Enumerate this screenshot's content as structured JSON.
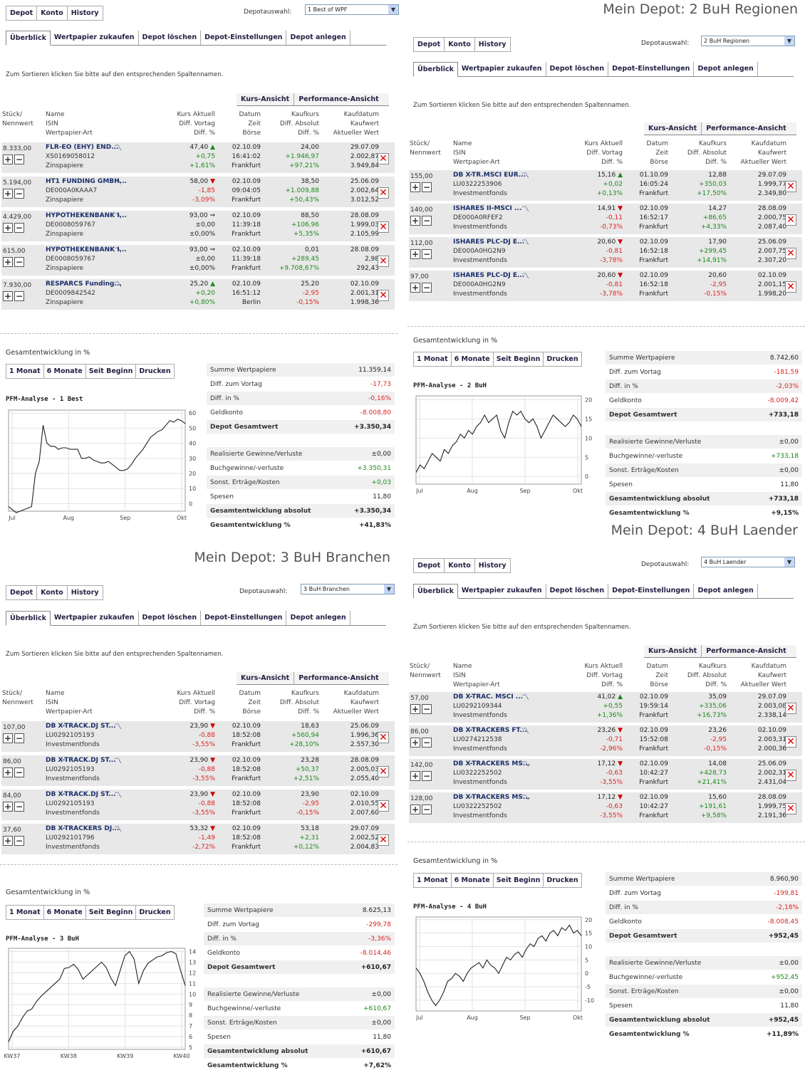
{
  "common": {
    "nav_tabs": [
      "Depot",
      "Konto",
      "History"
    ],
    "depot_select_label": "Depotauswahl:",
    "sub_tabs": [
      "Überblick",
      "Wertpapier zukaufen",
      "Depot löschen",
      "Depot-Einstellungen",
      "Depot anlegen"
    ],
    "sort_hint": "Zum Sortieren klicken Sie bitte auf den entsprechenden Spaltennamen.",
    "view_tabs": [
      "Kurs-Ansicht",
      "Performance-Ansicht"
    ],
    "headers": {
      "col1": [
        "Stück/",
        "Nennwert"
      ],
      "col2": [
        "Name",
        "ISIN",
        "Wertpapier-Art"
      ],
      "col3": [
        "Kurs Aktuell",
        "Diff. Vortag",
        "Diff. %"
      ],
      "col4": [
        "Datum",
        "Zeit",
        "Börse"
      ],
      "col5": [
        "Kaufkurs",
        "Diff. Absolut",
        "Diff. %"
      ],
      "col6": [
        "Kaufdatum",
        "Kaufwert",
        "Aktueller Wert"
      ]
    },
    "gesamt_label": "Gesamtentwicklung in %",
    "range_tabs": [
      "1 Monat",
      "6 Monate",
      "Seit Beginn",
      "Drucken"
    ],
    "summary_labels": {
      "summe": "Summe Wertpapiere",
      "diff_vortag": "Diff. zum Vortag",
      "diff_pct": "Diff. in %",
      "geldkonto": "Geldkonto",
      "depot_gesamt": "Depot Gesamtwert",
      "realisiert": "Realisierte Gewinne/Verluste",
      "buch": "Buchgewinne/-verluste",
      "sonst": "Sonst. Erträge/Kosten",
      "spesen": "Spesen",
      "ges_abs": "Gesamtentwicklung absolut",
      "ges_pct": "Gesamtentwicklung %"
    },
    "colors": {
      "positive": "#1a8a1a",
      "negative": "#e02020",
      "link": "#1a2f6b"
    }
  },
  "panels": [
    {
      "title": "",
      "depot_selected": "1 Best of WPF",
      "rows": [
        {
          "qty": "8.333,00",
          "name": "FLR-EO (EHY) END...",
          "isin": "XS0169058012",
          "type": "Zinspapiere",
          "kurs": "47,40",
          "arrow": "up",
          "diff_vortag": "+0,75",
          "diff_pct": "+1,61%",
          "datum": "02.10.09",
          "zeit": "16:41:02",
          "boerse": "Frankfurt",
          "kaufkurs": "24,00",
          "diff_abs": "+1.946,97",
          "diff_pct2": "+97,21%",
          "kaufdatum": "29.07.09",
          "kaufwert": "2.002,87",
          "akt_wert": "3.949,84"
        },
        {
          "qty": "5.194,00",
          "name": "HT1 FUNDING GMBH...",
          "isin": "DE000A0KAAA7",
          "type": "Zinspapiere",
          "kurs": "58,00",
          "arrow": "dn",
          "diff_vortag": "-1,85",
          "diff_pct": "-3,09%",
          "datum": "02.10.09",
          "zeit": "09:04:05",
          "boerse": "Frankfurt",
          "kaufkurs": "38,50",
          "diff_abs": "+1.009,88",
          "diff_pct2": "+50,43%",
          "kaufdatum": "25.06.09",
          "kaufwert": "2.002,64",
          "akt_wert": "3.012,52"
        },
        {
          "qty": "4.429,00",
          "name": "HYPOTHEKENBANK I...",
          "isin": "DE0008059767",
          "type": "Zinspapiere",
          "kurs": "93,00",
          "arrow": "eq",
          "diff_vortag": "±0,00",
          "diff_pct": "±0,00%",
          "datum": "02.10.09",
          "zeit": "11:39:18",
          "boerse": "Frankfurt",
          "kaufkurs": "88,50",
          "diff_abs": "+106,96",
          "diff_pct2": "+5,35%",
          "kaufdatum": "28.08.09",
          "kaufwert": "1.999,03",
          "akt_wert": "2.105,99"
        },
        {
          "qty": "615,00",
          "name": "HYPOTHEKENBANK I...",
          "isin": "DE0008059767",
          "type": "Zinspapiere",
          "kurs": "93,00",
          "arrow": "eq",
          "diff_vortag": "±0,00",
          "diff_pct": "±0,00%",
          "datum": "02.10.09",
          "zeit": "11:39:18",
          "boerse": "Frankfurt",
          "kaufkurs": "0,01",
          "diff_abs": "+289,45",
          "diff_pct2": "+9.708,67%",
          "kaufdatum": "28.08.09",
          "kaufwert": "2,98",
          "akt_wert": "292,43"
        },
        {
          "qty": "7.930,00",
          "name": "RESPARCS Funding...",
          "isin": "DE0009842542",
          "type": "Zinspapiere",
          "kurs": "25,20",
          "arrow": "up",
          "diff_vortag": "+0,20",
          "diff_pct": "+0,80%",
          "datum": "02.10.09",
          "zeit": "16:51:12",
          "boerse": "Berlin",
          "kaufkurs": "25,20",
          "diff_abs": "-2,95",
          "diff_pct2": "-0,15%",
          "kaufdatum": "02.10.09",
          "kaufwert": "2.001,31",
          "akt_wert": "1.998,36"
        }
      ],
      "pfm": "PFM-Analyse - 1 Best",
      "chart": {
        "ylabels": [
          "60",
          "50",
          "40",
          "30",
          "20",
          "10",
          "0"
        ],
        "xlabels": [
          "Jul",
          "Aug",
          "Sep",
          "Okt"
        ],
        "ymin": -5,
        "ymax": 62,
        "values": [
          -2,
          -4,
          -6,
          -5,
          -4,
          -3,
          -2,
          20,
          28,
          52,
          40,
          38,
          38,
          36,
          37,
          37,
          36,
          36,
          36,
          30,
          30,
          31,
          29,
          28,
          27,
          27,
          28,
          26,
          24,
          22,
          22,
          23,
          26,
          30,
          33,
          36,
          40,
          44,
          46,
          48,
          49,
          52,
          55,
          54,
          56,
          55,
          53
        ]
      },
      "summary": {
        "summe": "11.359,14",
        "diff_vortag": "-17,73",
        "diff_pct": "-0,16%",
        "geldkonto": "-8.008,80",
        "depot_gesamt": "+3.350,34",
        "realisiert": "±0,00",
        "buch": "+3.350,31",
        "sonst": "+0,03",
        "spesen": "11,80",
        "ges_abs": "+3.350,34",
        "ges_pct": "+41,83%"
      }
    },
    {
      "title": "Mein Depot: 2 BuH Regionen",
      "depot_selected": "2 BuH Regionen",
      "rows": [
        {
          "qty": "155,00",
          "name": "DB X-TR.MSCI EUR...",
          "isin": "LU0322253906",
          "type": "Investmentfonds",
          "kurs": "15,16",
          "arrow": "up",
          "diff_vortag": "+0,02",
          "diff_pct": "+0,13%",
          "datum": "01.10.09",
          "zeit": "16:05:24",
          "boerse": "Frankfurt",
          "kaufkurs": "12,88",
          "diff_abs": "+350,03",
          "diff_pct2": "+17,50%",
          "kaufdatum": "29.07.09",
          "kaufwert": "1.999,77",
          "akt_wert": "2.349,80"
        },
        {
          "qty": "140,00",
          "name": "ISHARES II-MSCI ...",
          "isin": "DE000A0RFEF2",
          "type": "Investmentfonds",
          "kurs": "14,91",
          "arrow": "dn",
          "diff_vortag": "-0,11",
          "diff_pct": "-0,73%",
          "datum": "02.10.09",
          "zeit": "16:52:17",
          "boerse": "Frankfurt",
          "kaufkurs": "14,27",
          "diff_abs": "+86,65",
          "diff_pct2": "+4,33%",
          "kaufdatum": "28.08.09",
          "kaufwert": "2.000,75",
          "akt_wert": "2.087,40"
        },
        {
          "qty": "112,00",
          "name": "ISHARES PLC-DJ E...",
          "isin": "DE000A0HG2N9",
          "type": "Investmentfonds",
          "kurs": "20,60",
          "arrow": "dn",
          "diff_vortag": "-0,81",
          "diff_pct": "-3,78%",
          "datum": "02.10.09",
          "zeit": "16:52:18",
          "boerse": "Frankfurt",
          "kaufkurs": "17,90",
          "diff_abs": "+299,45",
          "diff_pct2": "+14,91%",
          "kaufdatum": "25.06.09",
          "kaufwert": "2.007,75",
          "akt_wert": "2.307,20"
        },
        {
          "qty": "97,00",
          "name": "ISHARES PLC-DJ E...",
          "isin": "DE000A0HG2N9",
          "type": "Investmentfonds",
          "kurs": "20,60",
          "arrow": "dn",
          "diff_vortag": "-0,81",
          "diff_pct": "-3,78%",
          "datum": "02.10.09",
          "zeit": "16:52:18",
          "boerse": "Frankfurt",
          "kaufkurs": "20,60",
          "diff_abs": "-2,95",
          "diff_pct2": "-0,15%",
          "kaufdatum": "02.10.09",
          "kaufwert": "2.001,15",
          "akt_wert": "1.998,20"
        }
      ],
      "pfm": "PFM-Analyse - 2 BuH",
      "chart": {
        "ylabels": [
          "20",
          "15",
          "10",
          "5",
          "0"
        ],
        "xlabels": [
          "Jul",
          "Aug",
          "Sep",
          "Okt"
        ],
        "ymin": -2,
        "ymax": 21,
        "values": [
          1,
          3,
          2,
          4,
          6,
          5,
          4,
          7,
          6,
          8,
          9,
          11,
          10,
          12,
          11,
          13,
          14,
          16,
          14,
          15,
          16,
          12,
          10,
          14,
          17,
          16,
          17,
          15,
          14,
          15,
          13,
          10,
          12,
          14,
          16,
          15,
          14,
          13,
          14,
          16,
          15,
          13
        ]
      },
      "summary": {
        "summe": "8.742,60",
        "diff_vortag": "-181,59",
        "diff_pct": "-2,03%",
        "geldkonto": "-8.009,42",
        "depot_gesamt": "+733,18",
        "realisiert": "±0,00",
        "buch": "+733,18",
        "sonst": "±0,00",
        "spesen": "11,80",
        "ges_abs": "+733,18",
        "ges_pct": "+9,15%"
      }
    },
    {
      "title": "Mein Depot: 3 BuH Branchen",
      "depot_selected": "3 BuH Branchen",
      "rows": [
        {
          "qty": "107,00",
          "name": "DB X-TRACK.DJ ST...",
          "isin": "LU0292105193",
          "type": "Investmentfonds",
          "kurs": "23,90",
          "arrow": "dn",
          "diff_vortag": "-0,88",
          "diff_pct": "-3,55%",
          "datum": "02.10.09",
          "zeit": "18:52:08",
          "boerse": "Frankfurt",
          "kaufkurs": "18,63",
          "diff_abs": "+560,94",
          "diff_pct2": "+28,10%",
          "kaufdatum": "25.06.09",
          "kaufwert": "1.996,36",
          "akt_wert": "2.557,30"
        },
        {
          "qty": "86,00",
          "name": "DB X-TRACK.DJ ST...",
          "isin": "LU0292105193",
          "type": "Investmentfonds",
          "kurs": "23,90",
          "arrow": "dn",
          "diff_vortag": "-0,88",
          "diff_pct": "-3,55%",
          "datum": "02.10.09",
          "zeit": "18:52:08",
          "boerse": "Frankfurt",
          "kaufkurs": "23,28",
          "diff_abs": "+50,37",
          "diff_pct2": "+2,51%",
          "kaufdatum": "28.08.09",
          "kaufwert": "2.005,03",
          "akt_wert": "2.055,40"
        },
        {
          "qty": "84,00",
          "name": "DB X-TRACK.DJ ST...",
          "isin": "LU0292105193",
          "type": "Investmentfonds",
          "kurs": "23,90",
          "arrow": "dn",
          "diff_vortag": "-0,88",
          "diff_pct": "-3,55%",
          "datum": "02.10.09",
          "zeit": "18:52:08",
          "boerse": "Frankfurt",
          "kaufkurs": "23,90",
          "diff_abs": "-2,95",
          "diff_pct2": "-0,15%",
          "kaufdatum": "02.10.09",
          "kaufwert": "2.010,55",
          "akt_wert": "2.007,60"
        },
        {
          "qty": "37,60",
          "name": "DB X-TRACKERS DJ...",
          "isin": "LU0292101796",
          "type": "Investmentfonds",
          "kurs": "53,32",
          "arrow": "dn",
          "diff_vortag": "-1,49",
          "diff_pct": "-2,72%",
          "datum": "02.10.09",
          "zeit": "18:52:08",
          "boerse": "Frankfurt",
          "kaufkurs": "53,18",
          "diff_abs": "+2,31",
          "diff_pct2": "+0,12%",
          "kaufdatum": "29.07.09",
          "kaufwert": "2.002,52",
          "akt_wert": "2.004,83"
        }
      ],
      "pfm": "PFM-Analyse - 3 BuH",
      "chart": {
        "ylabels": [
          "14",
          "13",
          "12",
          "11",
          "10",
          "9",
          "8",
          "7",
          "6",
          "5"
        ],
        "xlabels": [
          "KW37",
          "KW38",
          "KW39",
          "KW40"
        ],
        "ymin": 4.8,
        "ymax": 14.3,
        "values": [
          5.5,
          6.5,
          7,
          7.8,
          8.4,
          8.6,
          9.3,
          9.8,
          10.2,
          10.6,
          11,
          11.4,
          12.4,
          12.5,
          12.8,
          12.3,
          11.4,
          11.8,
          12.2,
          12.6,
          13,
          12.5,
          11.5,
          10.8,
          12.2,
          13.6,
          14,
          13.3,
          11,
          12.2,
          12.9,
          13.2,
          13.5,
          13.6,
          13.9,
          14,
          13.8,
          12.2,
          10.8
        ]
      },
      "summary": {
        "summe": "8.625,13",
        "diff_vortag": "-299,78",
        "diff_pct": "-3,36%",
        "geldkonto": "-8.014,46",
        "depot_gesamt": "+610,67",
        "realisiert": "±0,00",
        "buch": "+610,67",
        "sonst": "±0,00",
        "spesen": "11,80",
        "ges_abs": "+610,67",
        "ges_pct": "+7,62%"
      }
    },
    {
      "title": "Mein Depot: 4 BuH Laender",
      "depot_selected": "4 BuH Laender",
      "rows": [
        {
          "qty": "57,00",
          "name": "DB X-TRAC. MSCI ...",
          "isin": "LU0292109344",
          "type": "Investmentfonds",
          "kurs": "41,02",
          "arrow": "up",
          "diff_vortag": "+0,55",
          "diff_pct": "+1,36%",
          "datum": "02.10.09",
          "zeit": "19:59:14",
          "boerse": "Frankfurt",
          "kaufkurs": "35,09",
          "diff_abs": "+335,06",
          "diff_pct2": "+16,73%",
          "kaufdatum": "29.07.09",
          "kaufwert": "2.003,08",
          "akt_wert": "2.338,14"
        },
        {
          "qty": "86,00",
          "name": "DB X-TRACKERS FT...",
          "isin": "LU0274212538",
          "type": "Investmentfonds",
          "kurs": "23,26",
          "arrow": "dn",
          "diff_vortag": "-0,71",
          "diff_pct": "-2,96%",
          "datum": "02.10.09",
          "zeit": "15:52:08",
          "boerse": "Frankfurt",
          "kaufkurs": "23,26",
          "diff_abs": "-2,95",
          "diff_pct2": "-0,15%",
          "kaufdatum": "02.10.09",
          "kaufwert": "2.003,31",
          "akt_wert": "2.000,36"
        },
        {
          "qty": "142,00",
          "name": "DB X-TRACKERS MS...",
          "isin": "LU0322252502",
          "type": "Investmentfonds",
          "kurs": "17,12",
          "arrow": "dn",
          "diff_vortag": "-0,63",
          "diff_pct": "-3,55%",
          "datum": "02.10.09",
          "zeit": "10:42:27",
          "boerse": "Frankfurt",
          "kaufkurs": "14,08",
          "diff_abs": "+428,73",
          "diff_pct2": "+21,41%",
          "kaufdatum": "25.06.09",
          "kaufwert": "2.002,31",
          "akt_wert": "2.431,04"
        },
        {
          "qty": "128,00",
          "name": "DB X-TRACKERS MS...",
          "isin": "LU0322252502",
          "type": "Investmentfonds",
          "kurs": "17,12",
          "arrow": "dn",
          "diff_vortag": "-0,63",
          "diff_pct": "-3,55%",
          "datum": "02.10.09",
          "zeit": "10:42:27",
          "boerse": "Frankfurt",
          "kaufkurs": "15,60",
          "diff_abs": "+191,61",
          "diff_pct2": "+9,58%",
          "kaufdatum": "28.08.09",
          "kaufwert": "1.999,75",
          "akt_wert": "2.191,36"
        }
      ],
      "pfm": "PFM-Analyse - 4 BuH",
      "chart": {
        "ylabels": [
          "20",
          "15",
          "10",
          "5",
          "0",
          "-5",
          "-10"
        ],
        "xlabels": [
          "Jul",
          "Aug",
          "Sep",
          "Okt"
        ],
        "ymin": -14,
        "ymax": 21,
        "values": [
          2,
          0,
          -3,
          -7,
          -10,
          -12,
          -10,
          -7,
          -3,
          -2,
          0,
          -1,
          -3,
          0,
          2,
          3,
          4,
          2,
          5,
          3,
          2,
          0,
          3,
          6,
          5,
          7,
          8,
          6,
          9,
          11,
          10,
          13,
          14,
          12,
          15,
          16,
          14,
          17,
          16,
          18,
          15,
          16,
          14
        ]
      },
      "summary": {
        "summe": "8.960,90",
        "diff_vortag": "-199,81",
        "diff_pct": "-2,18%",
        "geldkonto": "-8.008,45",
        "depot_gesamt": "+952,45",
        "realisiert": "±0,00",
        "buch": "+952,45",
        "sonst": "±0,00",
        "spesen": "11,80",
        "ges_abs": "+952,45",
        "ges_pct": "+11,89%"
      }
    }
  ]
}
